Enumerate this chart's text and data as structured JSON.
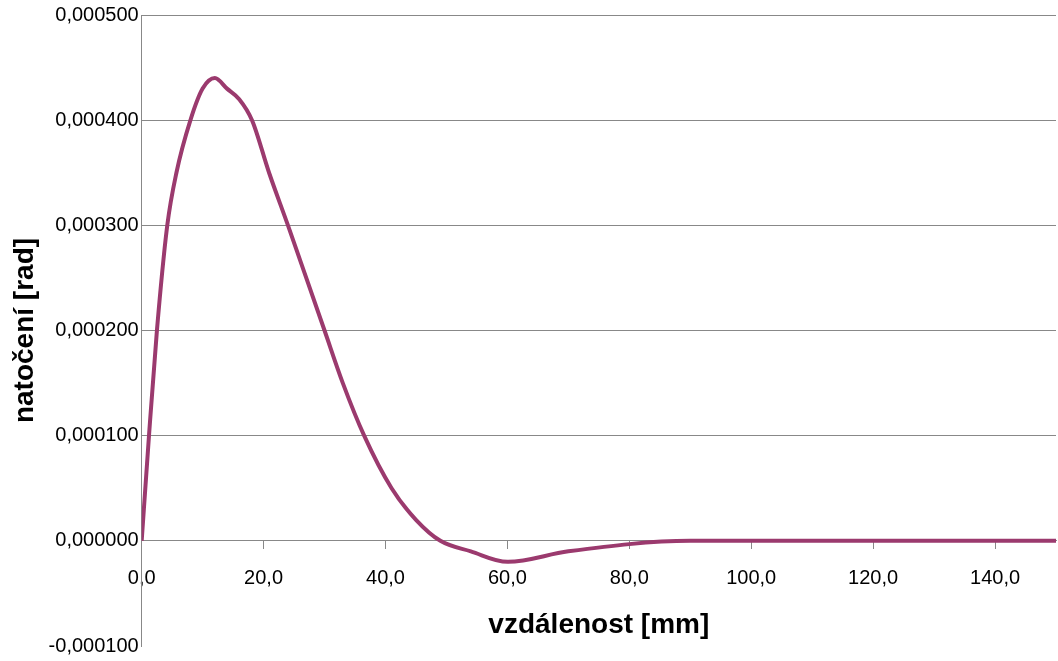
{
  "chart_data": {
    "type": "line",
    "xlabel": "vzdálenost [mm]",
    "ylabel": "natočení [rad]",
    "xlim": [
      0,
      150
    ],
    "ylim": [
      -0.0001,
      0.0005
    ],
    "xticks": [
      {
        "value": 0,
        "label": "0,0"
      },
      {
        "value": 20,
        "label": "20,0"
      },
      {
        "value": 40,
        "label": "40,0"
      },
      {
        "value": 60,
        "label": "60,0"
      },
      {
        "value": 80,
        "label": "80,0"
      },
      {
        "value": 100,
        "label": "100,0"
      },
      {
        "value": 120,
        "label": "120,0"
      },
      {
        "value": 140,
        "label": "140,0"
      }
    ],
    "yticks": [
      {
        "value": -0.0001,
        "label": "-0,000100"
      },
      {
        "value": 0,
        "label": "0,000000"
      },
      {
        "value": 0.0001,
        "label": "0,000100"
      },
      {
        "value": 0.0002,
        "label": "0,000200"
      },
      {
        "value": 0.0003,
        "label": "0,000300"
      },
      {
        "value": 0.0004,
        "label": "0,000400"
      },
      {
        "value": 0.0005,
        "label": "0,000500"
      }
    ],
    "grid": "y",
    "legend": false,
    "marker": "none",
    "line_style": "solid",
    "series": [
      {
        "color": "#9b3a6e",
        "x": [
          0,
          1.2,
          2.5,
          4.2,
          5.7,
          8,
          10,
          12,
          14,
          16,
          18.1,
          20.9,
          24,
          27,
          30,
          33,
          36.5,
          41,
          45,
          49,
          54,
          60,
          70,
          90,
          100,
          120,
          150
        ],
        "values": [
          0,
          0.0001,
          0.0002,
          0.0003,
          0.00035,
          0.0004,
          0.00043,
          0.00044,
          0.00043,
          0.00042,
          0.0004,
          0.00035,
          0.0003,
          0.00025,
          0.0002,
          0.00015,
          0.0001,
          5e-05,
          2e-05,
          0,
          -1e-05,
          -2e-05,
          -1e-05,
          0,
          0,
          0,
          0
        ]
      }
    ]
  }
}
